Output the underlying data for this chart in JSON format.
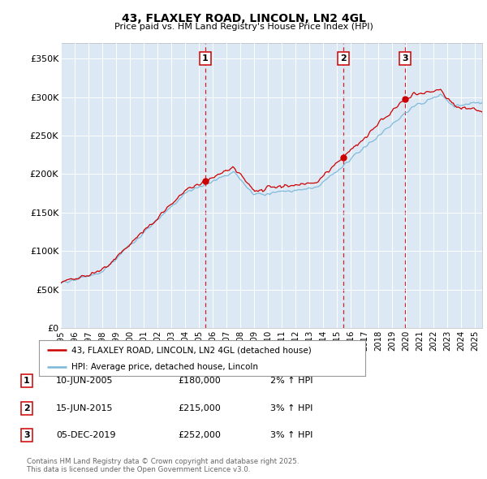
{
  "title": "43, FLAXLEY ROAD, LINCOLN, LN2 4GL",
  "subtitle": "Price paid vs. HM Land Registry's House Price Index (HPI)",
  "ylabel_ticks": [
    "£0",
    "£50K",
    "£100K",
    "£150K",
    "£200K",
    "£250K",
    "£300K",
    "£350K"
  ],
  "ytick_values": [
    0,
    50000,
    100000,
    150000,
    200000,
    250000,
    300000,
    350000
  ],
  "ylim": [
    0,
    370000
  ],
  "xlim_start": 1995.0,
  "xlim_end": 2025.5,
  "background_color": "#dce9f5",
  "plot_bg_color": "#dce9f5",
  "hpi_line_color": "#7ab8d9",
  "price_line_color": "#cc0000",
  "vline_color": "#cc0000",
  "legend_label_price": "43, FLAXLEY ROAD, LINCOLN, LN2 4GL (detached house)",
  "legend_label_hpi": "HPI: Average price, detached house, Lincoln",
  "sales": [
    {
      "num": 1,
      "date_label": "10-JUN-2005",
      "price": 180000,
      "pct": "2%",
      "x_year": 2005.44
    },
    {
      "num": 2,
      "date_label": "15-JUN-2015",
      "price": 215000,
      "pct": "3%",
      "x_year": 2015.44
    },
    {
      "num": 3,
      "date_label": "05-DEC-2019",
      "price": 252000,
      "pct": "3%",
      "x_year": 2019.92
    }
  ],
  "footer": "Contains HM Land Registry data © Crown copyright and database right 2025.\nThis data is licensed under the Open Government Licence v3.0.",
  "xtick_years": [
    1995,
    1996,
    1997,
    1998,
    1999,
    2000,
    2001,
    2002,
    2003,
    2004,
    2005,
    2006,
    2007,
    2008,
    2009,
    2010,
    2011,
    2012,
    2013,
    2014,
    2015,
    2016,
    2017,
    2018,
    2019,
    2020,
    2021,
    2022,
    2023,
    2024,
    2025
  ]
}
